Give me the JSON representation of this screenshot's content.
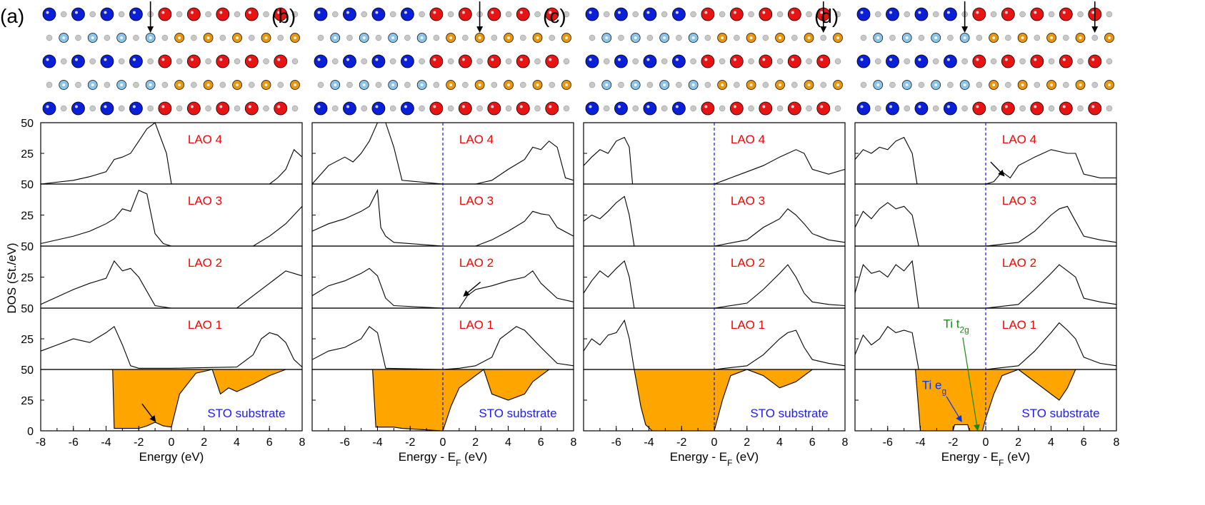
{
  "figure": {
    "y_axis_label": "DOS (St./eV)",
    "panels": [
      {
        "letter": "(a)",
        "xlabel": "Energy  (eV)",
        "fermi_line": false,
        "arrow_layers": [
          7
        ]
      },
      {
        "letter": "(b)",
        "xlabel": "Energy - E_F (eV)",
        "fermi_line": true,
        "arrow_layers": [
          11
        ]
      },
      {
        "letter": "(c)",
        "xlabel": "Energy - E_F (eV)",
        "fermi_line": true,
        "arrow_layers": [
          16
        ]
      },
      {
        "letter": "(d)",
        "xlabel": "Energy - E_F (eV)",
        "fermi_line": true,
        "arrow_layers": [
          7,
          16
        ]
      }
    ],
    "row_labels": [
      "LAO 4",
      "LAO 3",
      "LAO 2",
      "LAO 1",
      "STO substrate"
    ],
    "annotations": {
      "ti_eg": "Ti e_g",
      "ti_t2g": "Ti t_2g"
    },
    "colors": {
      "la": "#0a1fd8",
      "sr": "#e81414",
      "al": "#8cc4e8",
      "ti": "#e8960a",
      "o": "#c8c8c8",
      "substrate_fill": "#ffa500",
      "layer_label": "#ff0000",
      "substrate_label": "#1a1aff",
      "fermi": "#0000dd",
      "ti_eg_color": "#0033ff",
      "ti_t2g_color": "#138a13"
    }
  },
  "chart_data": {
    "type": "area",
    "x_range": [
      -8,
      8
    ],
    "x_ticks": [
      -8,
      -6,
      -4,
      -2,
      0,
      2,
      4,
      6,
      8
    ],
    "y_range": [
      0,
      50
    ],
    "y_ticks": [
      0,
      25,
      50
    ],
    "panels": [
      {
        "id": "a",
        "lao_4": {
          "x": [
            -8,
            -6,
            -5,
            -4,
            -3.5,
            -3,
            -2.5,
            -2,
            -1.5,
            -1,
            -0.3,
            0,
            6,
            6.5,
            7,
            7.5,
            8
          ],
          "y": [
            0,
            3,
            6,
            10,
            20,
            22,
            25,
            35,
            45,
            50,
            25,
            0,
            0,
            5,
            12,
            28,
            22
          ]
        },
        "lao_3": {
          "x": [
            -8,
            -6,
            -5,
            -4,
            -3.5,
            -3,
            -2.5,
            -2,
            -1.5,
            -1,
            -0.5,
            0,
            5,
            6,
            7,
            8
          ],
          "y": [
            2,
            8,
            12,
            18,
            22,
            30,
            28,
            45,
            42,
            10,
            2,
            0,
            0,
            8,
            18,
            32
          ]
        },
        "lao_2": {
          "x": [
            -8,
            -6,
            -5,
            -4,
            -3.5,
            -3,
            -2.5,
            -2,
            -1,
            0,
            4,
            5,
            6,
            7,
            8
          ],
          "y": [
            3,
            15,
            20,
            24,
            38,
            30,
            32,
            25,
            2,
            0,
            0,
            10,
            20,
            30,
            26
          ]
        },
        "lao_1": {
          "x": [
            -8,
            -7,
            -6,
            -5,
            -4,
            -3.5,
            -3,
            -2.5,
            -2,
            0,
            4,
            5,
            5.5,
            6,
            6.5,
            7,
            7.5,
            8
          ],
          "y": [
            15,
            20,
            25,
            22,
            30,
            35,
            20,
            3,
            1,
            1,
            2,
            12,
            25,
            30,
            28,
            22,
            8,
            2
          ]
        },
        "sto": {
          "x": [
            -8,
            -3.6,
            -3.5,
            -2,
            -1.5,
            -1,
            -0.5,
            0,
            0.5,
            1.5,
            2.5,
            3,
            3.5,
            4,
            5,
            6,
            7,
            8
          ],
          "y": [
            50,
            50,
            2,
            2,
            4,
            7,
            4,
            3,
            30,
            47,
            50,
            30,
            35,
            32,
            38,
            45,
            50,
            50
          ]
        }
      },
      {
        "id": "b",
        "lao_4": {
          "x": [
            -8,
            -7,
            -6,
            -5.5,
            -5,
            -4.5,
            -4,
            -3.5,
            -3,
            -2.5,
            0,
            2,
            3,
            4,
            5,
            5.5,
            6,
            6.5,
            7,
            7.5,
            8
          ],
          "y": [
            0,
            15,
            22,
            18,
            25,
            35,
            50,
            50,
            30,
            3,
            0,
            0,
            3,
            12,
            20,
            30,
            28,
            35,
            30,
            5,
            3
          ]
        },
        "lao_3": {
          "x": [
            -8,
            -7,
            -6,
            -5,
            -4.5,
            -4,
            -3.8,
            -3.5,
            -3,
            0,
            2,
            3,
            4,
            5,
            5.5,
            6,
            6.5,
            7,
            8
          ],
          "y": [
            12,
            18,
            22,
            28,
            32,
            45,
            15,
            8,
            3,
            0,
            0,
            5,
            12,
            20,
            28,
            26,
            25,
            15,
            8
          ]
        },
        "lao_2": {
          "x": [
            -8,
            -7,
            -6,
            -5,
            -4.5,
            -4,
            -3.5,
            -3,
            0,
            1,
            1.5,
            2,
            3,
            4,
            5,
            5.5,
            6,
            7,
            8
          ],
          "y": [
            10,
            18,
            22,
            28,
            32,
            26,
            8,
            2,
            0,
            0,
            10,
            15,
            18,
            22,
            25,
            30,
            20,
            8,
            5
          ]
        },
        "lao_1": {
          "x": [
            -8,
            -7,
            -6,
            -5,
            -4.5,
            -4,
            -3.5,
            0,
            1,
            2,
            3,
            3.5,
            4,
            4.5,
            5,
            6,
            7,
            8
          ],
          "y": [
            8,
            15,
            18,
            25,
            35,
            30,
            1,
            0,
            1,
            3,
            10,
            25,
            30,
            35,
            32,
            18,
            5,
            3
          ]
        },
        "sto": {
          "x": [
            -8,
            -4.3,
            -4.1,
            -3,
            -2.5,
            0,
            0.5,
            1,
            2,
            2.5,
            3,
            4,
            5,
            5.5,
            6,
            6.5,
            7,
            8
          ],
          "y": [
            50,
            50,
            3,
            3,
            2,
            0,
            20,
            35,
            45,
            50,
            30,
            25,
            30,
            40,
            45,
            50,
            50,
            50
          ]
        }
      },
      {
        "id": "c",
        "lao_4": {
          "x": [
            -8,
            -7.5,
            -7,
            -6.5,
            -6,
            -5.5,
            -5.2,
            -5,
            0,
            1,
            2,
            3,
            4,
            5,
            5.5,
            6,
            7,
            8
          ],
          "y": [
            15,
            22,
            28,
            25,
            35,
            38,
            30,
            0,
            0,
            5,
            10,
            15,
            22,
            28,
            25,
            12,
            8,
            12
          ]
        },
        "lao_3": {
          "x": [
            -8,
            -7.5,
            -7,
            -6.5,
            -6,
            -5.5,
            -5.2,
            -4.9,
            0,
            2,
            3,
            4,
            4.5,
            5,
            5.5,
            6,
            7,
            8
          ],
          "y": [
            20,
            25,
            22,
            28,
            35,
            40,
            25,
            0,
            0,
            5,
            15,
            22,
            30,
            25,
            18,
            10,
            5,
            3
          ]
        },
        "lao_2": {
          "x": [
            -8,
            -7.5,
            -7,
            -6.5,
            -6,
            -5.5,
            -5.2,
            -4.9,
            0,
            2,
            3,
            4,
            4.5,
            5,
            5.5,
            6,
            7,
            8
          ],
          "y": [
            12,
            22,
            30,
            25,
            32,
            38,
            25,
            0,
            0,
            4,
            15,
            28,
            35,
            25,
            12,
            5,
            3,
            2
          ]
        },
        "lao_1": {
          "x": [
            -8,
            -7.5,
            -7,
            -6.5,
            -6,
            -5.5,
            -5.2,
            -4.9,
            0,
            2,
            3,
            4,
            4.5,
            5,
            5.5,
            6,
            7,
            8
          ],
          "y": [
            15,
            25,
            20,
            28,
            30,
            40,
            25,
            0,
            0,
            3,
            12,
            25,
            30,
            32,
            18,
            8,
            5,
            3
          ]
        },
        "sto": {
          "x": [
            -8,
            -4.9,
            -4.5,
            -4.2,
            -3.8,
            0,
            0.5,
            1,
            2,
            3,
            4,
            5,
            5.5,
            6,
            7,
            8
          ],
          "y": [
            50,
            50,
            20,
            5,
            0,
            0,
            25,
            45,
            50,
            45,
            35,
            40,
            45,
            50,
            50,
            50
          ]
        }
      },
      {
        "id": "d",
        "lao_4": {
          "x": [
            -8,
            -7.5,
            -7,
            -6.5,
            -6,
            -5.5,
            -5,
            -4.5,
            -4.2,
            0,
            0.5,
            1,
            1.5,
            2,
            3,
            4,
            5,
            5.5,
            6,
            7,
            8
          ],
          "y": [
            20,
            28,
            25,
            30,
            28,
            35,
            38,
            25,
            0,
            0,
            2,
            10,
            5,
            15,
            22,
            28,
            25,
            25,
            8,
            5,
            5
          ]
        },
        "lao_3": {
          "x": [
            -8,
            -7.5,
            -7,
            -6.5,
            -6,
            -5.5,
            -5,
            -4.5,
            -4.1,
            0,
            2,
            3,
            4,
            4.5,
            5,
            5.5,
            6,
            7,
            8
          ],
          "y": [
            15,
            28,
            22,
            30,
            35,
            30,
            32,
            25,
            0,
            0,
            3,
            12,
            25,
            30,
            32,
            20,
            8,
            5,
            3
          ]
        },
        "lao_2": {
          "x": [
            -8,
            -7.5,
            -7,
            -6.5,
            -6,
            -5.5,
            -5,
            -4.5,
            -4.1,
            0,
            2,
            3,
            4,
            4.5,
            5,
            5.5,
            6,
            7,
            8
          ],
          "y": [
            12,
            35,
            28,
            30,
            25,
            35,
            30,
            38,
            0,
            0,
            3,
            15,
            28,
            35,
            30,
            25,
            8,
            5,
            3
          ]
        },
        "lao_1": {
          "x": [
            -8,
            -7.5,
            -7,
            -6.5,
            -6,
            -5.5,
            -5,
            -4.5,
            -4.1,
            0,
            2,
            3,
            4,
            4.5,
            5,
            5.5,
            6,
            7,
            8
          ],
          "y": [
            12,
            28,
            20,
            25,
            35,
            30,
            32,
            30,
            0,
            0,
            3,
            15,
            30,
            38,
            32,
            25,
            10,
            5,
            3
          ]
        },
        "sto": {
          "x": [
            -8,
            -4.3,
            -4,
            -2,
            -1.9,
            -1.1,
            -1,
            -0.2,
            0,
            0.5,
            1,
            2,
            3,
            4,
            4.5,
            5,
            5.5,
            6,
            7,
            8
          ],
          "y": [
            50,
            50,
            0,
            0,
            5,
            5,
            0,
            0,
            10,
            30,
            45,
            50,
            40,
            30,
            25,
            35,
            50,
            50,
            50,
            50
          ]
        }
      }
    ]
  }
}
